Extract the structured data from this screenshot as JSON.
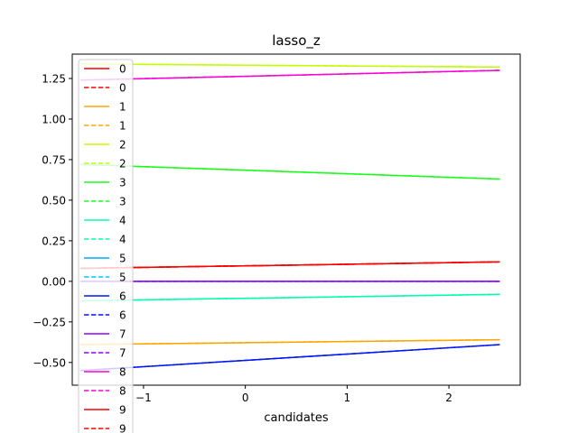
{
  "chart_data": {
    "type": "line",
    "title": "lasso_z",
    "xlabel": "candidates",
    "ylabel": "",
    "xlim": [
      -1.7,
      2.7
    ],
    "ylim": [
      -0.64,
      1.4
    ],
    "xticks": [
      -1,
      0,
      1,
      2
    ],
    "xtick_labels": [
      "−1",
      "0",
      "1",
      "2"
    ],
    "yticks": [
      -0.5,
      -0.25,
      0.0,
      0.25,
      0.5,
      0.75,
      1.0,
      1.25
    ],
    "ytick_labels": [
      "−0.50",
      "−0.25",
      "0.00",
      "0.25",
      "0.50",
      "0.75",
      "1.00",
      "1.25"
    ],
    "grid": false,
    "legend_position": "upper-left",
    "series": [
      {
        "name": "0",
        "color": "#ff0000",
        "dash": false,
        "x": [
          -1.62,
          2.5
        ],
        "values": [
          0.08,
          0.12
        ]
      },
      {
        "name": "0",
        "color": "#ff0000",
        "dash": true,
        "x": [
          -1.62,
          2.5
        ],
        "values": [
          0.08,
          0.12
        ]
      },
      {
        "name": "1",
        "color": "#ffa500",
        "dash": false,
        "x": [
          -1.62,
          2.5
        ],
        "values": [
          -0.39,
          -0.36
        ]
      },
      {
        "name": "1",
        "color": "#ffa500",
        "dash": true,
        "x": [
          -1.62,
          2.5
        ],
        "values": [
          -0.39,
          -0.36
        ]
      },
      {
        "name": "2",
        "color": "#bfff00",
        "dash": false,
        "x": [
          -1.62,
          2.5
        ],
        "values": [
          1.34,
          1.32
        ]
      },
      {
        "name": "2",
        "color": "#bfff00",
        "dash": true,
        "x": [
          -1.62,
          2.5
        ],
        "values": [
          1.34,
          1.32
        ]
      },
      {
        "name": "3",
        "color": "#1aff1a",
        "dash": false,
        "x": [
          -1.62,
          2.5
        ],
        "values": [
          0.72,
          0.63
        ]
      },
      {
        "name": "3",
        "color": "#1aff1a",
        "dash": true,
        "x": [
          -1.62,
          2.5
        ],
        "values": [
          0.72,
          0.63
        ]
      },
      {
        "name": "4",
        "color": "#00ffaa",
        "dash": false,
        "x": [
          -1.62,
          2.5
        ],
        "values": [
          -0.12,
          -0.08
        ]
      },
      {
        "name": "4",
        "color": "#00ffaa",
        "dash": true,
        "x": [
          -1.62,
          2.5
        ],
        "values": [
          -0.12,
          -0.08
        ]
      },
      {
        "name": "5",
        "color": "#00aaff",
        "dash": false,
        "x": [
          -1.62,
          2.5
        ],
        "values": [
          0.0,
          0.0
        ]
      },
      {
        "name": "5",
        "color": "#00ccff",
        "dash": true,
        "x": [
          -1.62,
          2.5
        ],
        "values": [
          0.0,
          0.0
        ]
      },
      {
        "name": "6",
        "color": "#0015ff",
        "dash": false,
        "x": [
          -1.62,
          2.5
        ],
        "values": [
          -0.55,
          -0.39
        ]
      },
      {
        "name": "6",
        "color": "#0015ff",
        "dash": true,
        "x": [
          -1.62,
          2.5
        ],
        "values": [
          -0.55,
          -0.39
        ]
      },
      {
        "name": "7",
        "color": "#9500ff",
        "dash": false,
        "x": [
          -1.62,
          2.5
        ],
        "values": [
          0.0,
          0.0
        ]
      },
      {
        "name": "7",
        "color": "#9500ff",
        "dash": true,
        "x": [
          -1.62,
          2.5
        ],
        "values": [
          0.0,
          0.0
        ]
      },
      {
        "name": "8",
        "color": "#ff00d4",
        "dash": false,
        "x": [
          -1.62,
          2.5
        ],
        "values": [
          1.24,
          1.3
        ]
      },
      {
        "name": "8",
        "color": "#ff00d4",
        "dash": true,
        "x": [
          -1.62,
          2.5
        ],
        "values": [
          1.24,
          1.3
        ]
      },
      {
        "name": "9",
        "color": "#ff0000",
        "dash": false,
        "x": [
          -1.62,
          2.5
        ],
        "values": [
          0.08,
          0.12
        ]
      },
      {
        "name": "9",
        "color": "#ff0000",
        "dash": true,
        "x": [
          -1.62,
          2.5
        ],
        "values": [
          0.08,
          0.12
        ]
      }
    ]
  }
}
